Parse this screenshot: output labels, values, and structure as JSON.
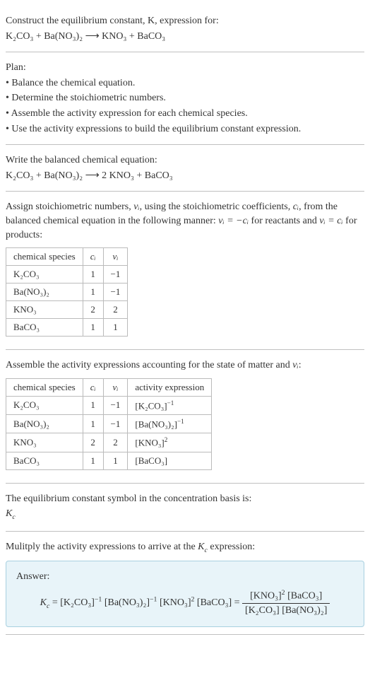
{
  "intro": {
    "line1": "Construct the equilibrium constant, K, expression for:",
    "reaction_lhs": "K₂CO₃ + Ba(NO₃)₂",
    "arrow": "⟶",
    "reaction_rhs": "KNO₃ + BaCO₃"
  },
  "plan": {
    "title": "Plan:",
    "items": [
      "• Balance the chemical equation.",
      "• Determine the stoichiometric numbers.",
      "• Assemble the activity expression for each chemical species.",
      "• Use the activity expressions to build the equilibrium constant expression."
    ]
  },
  "balanced": {
    "title": "Write the balanced chemical equation:",
    "lhs": "K₂CO₃ + Ba(NO₃)₂",
    "arrow": "⟶",
    "rhs": "2 KNO₃ + BaCO₃"
  },
  "assign": {
    "text_a": "Assign stoichiometric numbers, ",
    "nu": "νᵢ",
    "text_b": ", using the stoichiometric coefficients, ",
    "ci": "cᵢ",
    "text_c": ", from the balanced chemical equation in the following manner: ",
    "eq1": "νᵢ = −cᵢ",
    "text_d": " for reactants and ",
    "eq2": "νᵢ = cᵢ",
    "text_e": " for products:"
  },
  "table1": {
    "headers": [
      "chemical species",
      "cᵢ",
      "νᵢ"
    ],
    "rows": [
      [
        "K₂CO₃",
        "1",
        "−1"
      ],
      [
        "Ba(NO₃)₂",
        "1",
        "−1"
      ],
      [
        "KNO₃",
        "2",
        "2"
      ],
      [
        "BaCO₃",
        "1",
        "1"
      ]
    ]
  },
  "assemble": {
    "text_a": "Assemble the activity expressions accounting for the state of matter and ",
    "nu": "νᵢ",
    "text_b": ":"
  },
  "table2": {
    "headers": [
      "chemical species",
      "cᵢ",
      "νᵢ",
      "activity expression"
    ],
    "rows": [
      {
        "sp": "K₂CO₃",
        "c": "1",
        "v": "−1",
        "a_base": "[K₂CO₃]",
        "a_exp": "−1"
      },
      {
        "sp": "Ba(NO₃)₂",
        "c": "1",
        "v": "−1",
        "a_base": "[Ba(NO₃)₂]",
        "a_exp": "−1"
      },
      {
        "sp": "KNO₃",
        "c": "2",
        "v": "2",
        "a_base": "[KNO₃]",
        "a_exp": "2"
      },
      {
        "sp": "BaCO₃",
        "c": "1",
        "v": "1",
        "a_base": "[BaCO₃]",
        "a_exp": ""
      }
    ]
  },
  "symbol": {
    "text": "The equilibrium constant symbol in the concentration basis is:",
    "kc": "K",
    "kc_sub": "c"
  },
  "multiply": {
    "text_a": "Mulitply the activity expressions to arrive at the ",
    "kc": "K",
    "kc_sub": "c",
    "text_b": " expression:"
  },
  "answer": {
    "label": "Answer:",
    "kc": "K",
    "kc_sub": "c",
    "eq": " = ",
    "t1_base": "[K₂CO₃]",
    "t1_exp": "−1",
    "t2_base": "[Ba(NO₃)₂]",
    "t2_exp": "−1",
    "t3_base": "[KNO₃]",
    "t3_exp": "2",
    "t4_base": "[BaCO₃]",
    "eq2": " = ",
    "num1_base": "[KNO₃]",
    "num1_exp": "2",
    "num2": "[BaCO₃]",
    "den1": "[K₂CO₃]",
    "den2": "[Ba(NO₃)₂]"
  }
}
